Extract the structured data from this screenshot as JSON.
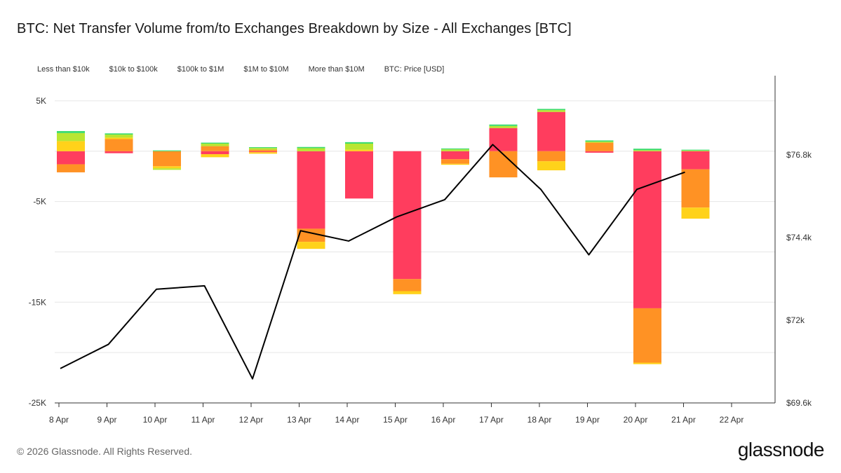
{
  "title": "BTC: Net Transfer Volume from/to Exchanges Breakdown by Size - All Exchanges [BTC]",
  "legend": [
    "Less than $10k",
    "$10k to $100k",
    "$100k to $1M",
    "$1M to $10M",
    "More than $10M",
    "BTC: Price [USD]"
  ],
  "footer": "© 2026 Glassnode. All Rights Reserved.",
  "brand": "glassnode",
  "colors": {
    "less_than_10k": "#3ddc6e",
    "10k_to_100k": "#b8e632",
    "100k_to_1m": "#ffd21a",
    "1m_to_10m": "#ff9224",
    "more_than_10m": "#ff3d5e",
    "price_line": "#000000",
    "grid": "#e6e6e6"
  },
  "chart_data": {
    "type": "bar",
    "stacked": true,
    "title": "BTC: Net Transfer Volume from/to Exchanges Breakdown by Size - All Exchanges [BTC]",
    "categories": [
      "8 Apr",
      "9 Apr",
      "10 Apr",
      "11 Apr",
      "12 Apr",
      "13 Apr",
      "14 Apr",
      "15 Apr",
      "16 Apr",
      "17 Apr",
      "18 Apr",
      "19 Apr",
      "20 Apr",
      "21 Apr",
      "22 Apr"
    ],
    "y_left": {
      "ticks": [
        "5K",
        "-5K",
        "-15K",
        "-25K"
      ],
      "ylim": [
        -25000,
        7500
      ]
    },
    "y_right": {
      "ticks": [
        "$76.8k",
        "$74.4k",
        "$72k",
        "$69.6k"
      ],
      "ylim": [
        69600,
        79100
      ]
    },
    "grid": true,
    "legend_position": "top-left",
    "series": [
      {
        "name": "Less than $10k",
        "axis": "left",
        "values": [
          200,
          120,
          80,
          100,
          80,
          120,
          150,
          0,
          90,
          150,
          120,
          120,
          150,
          80,
          null
        ]
      },
      {
        "name": "$10k to $100k",
        "axis": "left",
        "values": [
          800,
          300,
          -150,
          250,
          170,
          300,
          600,
          0,
          180,
          200,
          180,
          100,
          100,
          70,
          null
        ]
      },
      {
        "name": "$100k to $1M",
        "axis": "left",
        "values": [
          1000,
          150,
          -200,
          -300,
          -150,
          -700,
          150,
          -300,
          -100,
          0,
          -900,
          0,
          -150,
          -1100,
          null
        ]
      },
      {
        "name": "$1M to $10M",
        "axis": "left",
        "values": [
          -800,
          1200,
          -1500,
          500,
          150,
          -1300,
          0,
          -1200,
          -450,
          -2600,
          -1000,
          850,
          -5400,
          -3800,
          null
        ]
      },
      {
        "name": "More than $10M",
        "axis": "left",
        "values": [
          -1300,
          -200,
          0,
          -300,
          -100,
          -7700,
          -4700,
          -12700,
          -800,
          2300,
          3900,
          -150,
          -15600,
          -1800,
          null
        ]
      },
      {
        "name": "BTC: Price [USD]",
        "type": "line",
        "axis": "right",
        "values": [
          70600,
          71300,
          72900,
          73000,
          70300,
          74600,
          74300,
          75000,
          75500,
          77100,
          75800,
          73900,
          75800,
          76300,
          null
        ]
      }
    ]
  }
}
